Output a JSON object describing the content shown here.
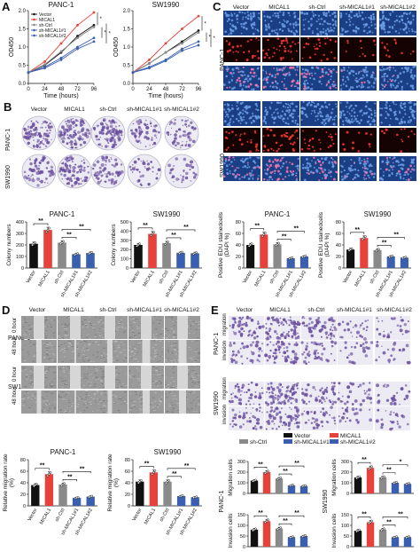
{
  "panels": {
    "A": "A",
    "B": "B",
    "C": "C",
    "D": "D",
    "E": "E"
  },
  "colors": {
    "vector": "#111111",
    "mical1": "#e8403a",
    "shctrl": "#8a8a8a",
    "sh1": "#3a5fb0",
    "sh2": "#3a5fb0",
    "dapi_bg": "#1b3f85",
    "edu_bg": "#150303",
    "crystal": "#6a4f9e"
  },
  "groups": [
    "Vector",
    "MICAL1",
    "sh-Ctrl",
    "sh-MICAL1#1",
    "sh-MICAL1#2"
  ],
  "panel_a": {
    "charts": [
      {
        "title": "PANC-1",
        "ylabel": "OD450",
        "xlabel": "Time  (hours)",
        "x": [
          0,
          24,
          48,
          72,
          96
        ],
        "ylim": [
          0,
          2.0
        ],
        "yticks": [
          "0.0",
          "0.5",
          "1.0",
          "1.5",
          "2.0"
        ],
        "series": [
          {
            "name": "Vector",
            "values": [
              0.3,
              0.5,
              0.85,
              1.3,
              1.6
            ]
          },
          {
            "name": "MICAL1",
            "values": [
              0.3,
              0.6,
              1.1,
              1.6,
              1.95
            ]
          },
          {
            "name": "sh-Ctrl",
            "values": [
              0.3,
              0.52,
              0.88,
              1.25,
              1.55
            ]
          },
          {
            "name": "sh-MICAL1#1",
            "values": [
              0.3,
              0.45,
              0.7,
              1.0,
              1.25
            ]
          },
          {
            "name": "sh-MICAL1#2",
            "values": [
              0.3,
              0.42,
              0.65,
              0.95,
              1.15
            ]
          }
        ],
        "sig": [
          "*",
          "*",
          "*"
        ]
      },
      {
        "title": "SW1990",
        "ylabel": "OD450",
        "xlabel": "Time  (hours)",
        "x": [
          0,
          24,
          48,
          72,
          96
        ],
        "ylim": [
          0,
          2.0
        ],
        "yticks": [
          "0.0",
          "0.5",
          "1.0",
          "1.5",
          "2.0"
        ],
        "series": [
          {
            "name": "Vector",
            "values": [
              0.3,
              0.55,
              0.85,
              1.15,
              1.45
            ]
          },
          {
            "name": "MICAL1",
            "values": [
              0.3,
              0.65,
              1.1,
              1.5,
              1.85
            ]
          },
          {
            "name": "sh-Ctrl",
            "values": [
              0.3,
              0.55,
              0.85,
              1.1,
              1.4
            ]
          },
          {
            "name": "sh-MICAL1#1",
            "values": [
              0.3,
              0.45,
              0.65,
              0.95,
              1.15
            ]
          },
          {
            "name": "sh-MICAL1#2",
            "values": [
              0.3,
              0.42,
              0.62,
              0.9,
              1.05
            ]
          }
        ],
        "sig": [
          "*",
          "*",
          "*"
        ]
      }
    ]
  },
  "panel_b": {
    "row_labels": [
      "PANC-1",
      "SW1990"
    ],
    "charts": [
      {
        "title": "PANC-1",
        "ylabel": "Colony numbers",
        "ylim": [
          0,
          400
        ],
        "yticks": [
          "0",
          "100",
          "200",
          "300",
          "400"
        ],
        "values": [
          210,
          330,
          220,
          120,
          130
        ],
        "sig": [
          "**",
          "**",
          "**"
        ]
      },
      {
        "title": "SW1990",
        "ylabel": "Colony numbers",
        "ylim": [
          0,
          500
        ],
        "yticks": [
          "0",
          "100",
          "200",
          "300",
          "400",
          "500"
        ],
        "values": [
          250,
          370,
          270,
          165,
          160
        ],
        "sig": [
          "**",
          "**",
          "**"
        ]
      }
    ]
  },
  "panel_c": {
    "row_labels": [
      "PANC-1",
      "SW1990"
    ],
    "charts": [
      {
        "title": "PANC-1",
        "ylabel": "Positive EDU stainedcells (DAPI %)",
        "ylim": [
          0,
          80
        ],
        "yticks": [
          "0",
          "20",
          "40",
          "60",
          "80"
        ],
        "values": [
          40,
          58,
          41,
          17,
          20
        ],
        "sig": [
          "**",
          "**",
          "**"
        ]
      },
      {
        "title": "SW1990",
        "ylabel": "Positive EDU stainedcells (DAPI %)",
        "ylim": [
          0,
          80
        ],
        "yticks": [
          "0",
          "20",
          "40",
          "60",
          "80"
        ],
        "values": [
          32,
          52,
          31,
          20,
          18
        ],
        "sig": [
          "**",
          "**",
          "**"
        ]
      }
    ]
  },
  "panel_d": {
    "cell_labels": [
      "PANC-1",
      "SW1990"
    ],
    "time_labels": [
      "0 hour",
      "48 hour"
    ],
    "charts": [
      {
        "title": "PANC-1",
        "ylabel": "Relative migration rate (%)",
        "ylim": [
          0,
          80
        ],
        "yticks": [
          "0",
          "20",
          "40",
          "60",
          "80"
        ],
        "values": [
          36,
          55,
          37,
          14,
          16
        ],
        "sig": [
          "**",
          "**",
          "**"
        ]
      },
      {
        "title": "SW1990",
        "ylabel": "Relative migration rate (%)",
        "ylim": [
          0,
          80
        ],
        "yticks": [
          "0",
          "20",
          "40",
          "60",
          "80"
        ],
        "values": [
          42,
          58,
          42,
          17,
          15
        ],
        "sig": [
          "**",
          "**",
          "**"
        ]
      }
    ]
  },
  "panel_e": {
    "cell_labels": [
      "PANC-1",
      "SW1990"
    ],
    "assay_labels": [
      "migration",
      "invasion"
    ],
    "charts": [
      {
        "row": "PANC-1",
        "ylabel": "Migration cells",
        "ylim": [
          0,
          300
        ],
        "yticks": [
          "0",
          "100",
          "200",
          "300"
        ],
        "values": [
          120,
          200,
          140,
          75,
          70
        ],
        "sig": [
          "**",
          "**",
          "**"
        ]
      },
      {
        "row": "SW1990",
        "ylabel": "Migration cells",
        "ylim": [
          0,
          300
        ],
        "yticks": [
          "0",
          "100",
          "200",
          "300"
        ],
        "values": [
          150,
          240,
          150,
          100,
          90
        ],
        "sig": [
          "**",
          "**",
          "*"
        ]
      },
      {
        "row": "PANC-1",
        "ylabel": "Invasion cells",
        "ylim": [
          0,
          150
        ],
        "yticks": [
          "0",
          "50",
          "100",
          "150"
        ],
        "values": [
          80,
          120,
          85,
          45,
          50
        ],
        "sig": [
          "**",
          "**",
          "**"
        ]
      },
      {
        "row": "SW1990",
        "ylabel": "Invasion cells",
        "ylim": [
          0,
          150
        ],
        "yticks": [
          "0",
          "50",
          "100",
          "150"
        ],
        "values": [
          75,
          115,
          80,
          45,
          45
        ],
        "sig": [
          "**",
          "**",
          "**"
        ]
      }
    ],
    "row_labels": [
      "PANC-1",
      "SW1990"
    ]
  }
}
